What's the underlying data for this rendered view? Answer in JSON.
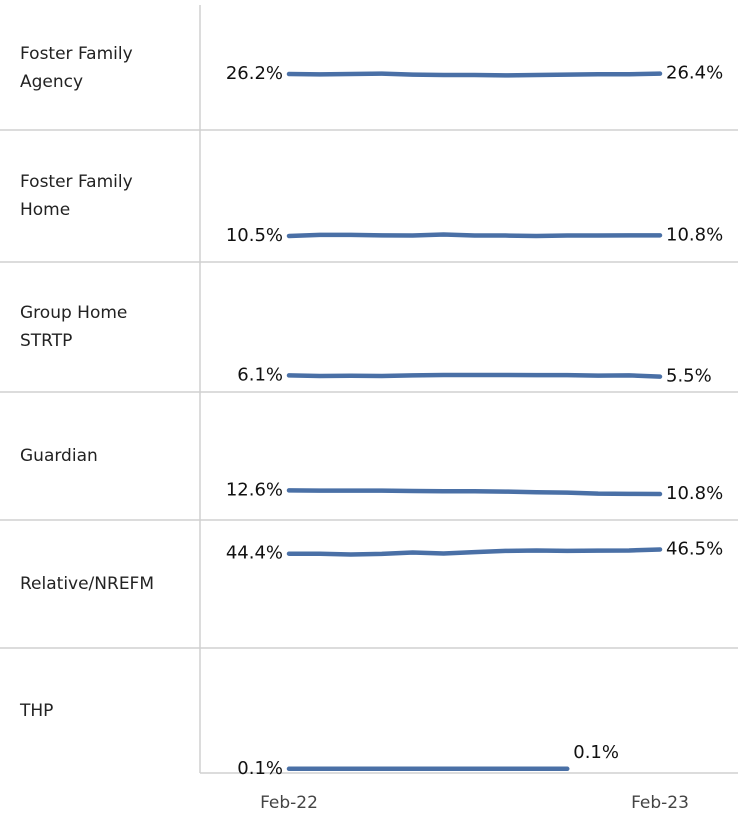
{
  "chart_data": {
    "type": "line",
    "categories": [
      "Feb-22",
      null,
      null,
      null,
      null,
      null,
      null,
      null,
      null,
      null,
      null,
      null,
      "Feb-23"
    ],
    "ylim": [
      0,
      60
    ],
    "color": "#4a70a6",
    "series": [
      {
        "name": "Foster Family Agency",
        "values": [
          26.2,
          26.0,
          26.2,
          26.4,
          25.9,
          25.7,
          25.7,
          25.5,
          25.7,
          25.9,
          26.1,
          26.1,
          26.4
        ],
        "value_labels": [
          "26.2%",
          null,
          null,
          null,
          null,
          null,
          null,
          null,
          null,
          null,
          null,
          null,
          "26.4%"
        ]
      },
      {
        "name": "Foster Family Home",
        "values": [
          10.5,
          11.0,
          11.0,
          10.8,
          10.7,
          11.2,
          10.7,
          10.7,
          10.5,
          10.7,
          10.7,
          10.8,
          10.8
        ],
        "value_labels": [
          "10.5%",
          null,
          null,
          null,
          null,
          null,
          null,
          null,
          null,
          null,
          null,
          null,
          "10.8%"
        ]
      },
      {
        "name": "Group Home STRTP",
        "values": [
          6.1,
          5.8,
          5.9,
          5.8,
          6.1,
          6.3,
          6.3,
          6.3,
          6.2,
          6.2,
          6.0,
          6.1,
          5.5
        ],
        "value_labels": [
          "6.1%",
          null,
          null,
          null,
          null,
          null,
          null,
          null,
          null,
          null,
          null,
          null,
          "5.5%"
        ]
      },
      {
        "name": "Guardian",
        "values": [
          12.6,
          12.5,
          12.5,
          12.5,
          12.3,
          12.2,
          12.2,
          12.0,
          11.7,
          11.5,
          11.0,
          10.9,
          10.8
        ],
        "value_labels": [
          "12.6%",
          null,
          null,
          null,
          null,
          null,
          null,
          null,
          null,
          null,
          null,
          null,
          "10.8%"
        ]
      },
      {
        "name": "Relative/NREFM",
        "values": [
          44.4,
          44.4,
          44.0,
          44.3,
          45.0,
          44.5,
          45.2,
          45.8,
          46.0,
          45.8,
          45.9,
          46.0,
          46.5
        ],
        "value_labels": [
          "44.4%",
          null,
          null,
          null,
          null,
          null,
          null,
          null,
          null,
          null,
          null,
          null,
          "46.5%"
        ]
      },
      {
        "name": "THP",
        "values": [
          0.1,
          0.1,
          0.1,
          0.1,
          0.1,
          0.1,
          0.1,
          0.1,
          0.1,
          0.1,
          null,
          null,
          null
        ],
        "value_labels": [
          "0.1%",
          null,
          null,
          null,
          null,
          null,
          null,
          null,
          null,
          "0.1%",
          null,
          null,
          null
        ]
      }
    ]
  }
}
